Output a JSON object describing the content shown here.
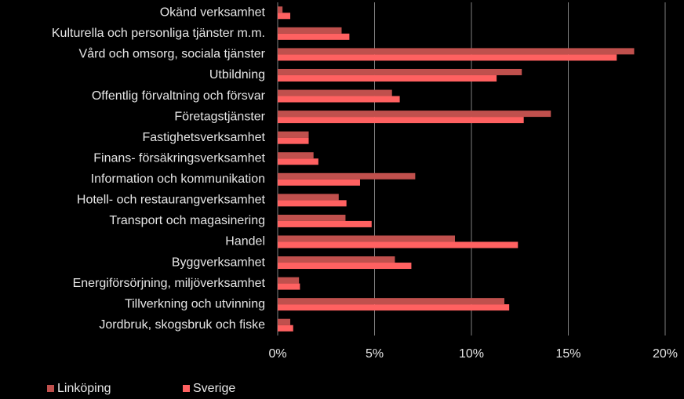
{
  "chart_data": {
    "type": "bar",
    "orientation": "horizontal",
    "categories": [
      "Okänd verksamhet",
      "Kulturella och personliga tjänster m.m.",
      "Vård och omsorg, sociala tjänster",
      "Utbildning",
      "Offentlig förvaltning och försvar",
      "Företagstjänster",
      "Fastighetsverksamhet",
      "Finans- försäkringsverksamhet",
      "Information och kommunikation",
      "Hotell- och restaurangverksamhet",
      "Transport och magasinering",
      "Handel",
      "Byggverksamhet",
      "Energiförsörjning, miljöverksamhet",
      "Tillverkning och utvinning",
      "Jordbruk, skogsbruk och fiske"
    ],
    "series": [
      {
        "name": "Linköping",
        "color": "#c0504d",
        "values": [
          0.25,
          3.3,
          18.4,
          12.6,
          5.9,
          14.1,
          1.6,
          1.85,
          7.1,
          3.15,
          3.5,
          9.15,
          6.05,
          1.1,
          11.7,
          0.65
        ]
      },
      {
        "name": "Sverige",
        "color": "#ff6161",
        "values": [
          0.65,
          3.7,
          17.5,
          11.3,
          6.3,
          12.7,
          1.6,
          2.1,
          4.25,
          3.55,
          4.85,
          12.4,
          6.9,
          1.15,
          11.95,
          0.8
        ]
      }
    ],
    "xlim": [
      0,
      20
    ],
    "xticks": [
      {
        "value": 0,
        "label": "0%"
      },
      {
        "value": 5,
        "label": "5%"
      },
      {
        "value": 10,
        "label": "10%"
      },
      {
        "value": 15,
        "label": "15%"
      },
      {
        "value": 20,
        "label": "20%"
      }
    ],
    "grid": true,
    "legend": "bottom"
  }
}
